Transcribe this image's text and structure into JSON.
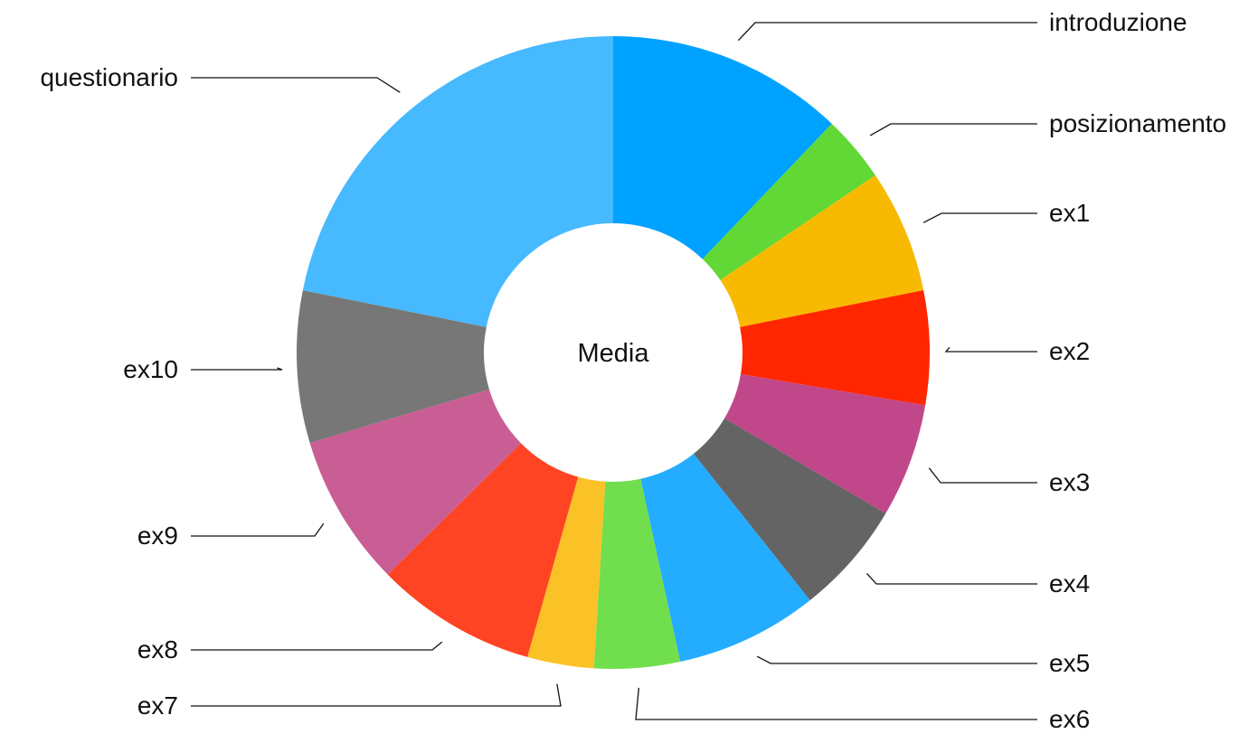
{
  "chart_data": {
    "type": "pie",
    "variant": "donut",
    "center_label": "Media",
    "legend": "none",
    "slices": [
      {
        "label": "introduzione",
        "value": 12.5,
        "color": "#00A2FF"
      },
      {
        "label": "posizionamento",
        "value": 3.5,
        "color": "#61D836"
      },
      {
        "label": "ex1",
        "value": 6.5,
        "color": "#F8BA00"
      },
      {
        "label": "ex2",
        "value": 6.0,
        "color": "#FF2600"
      },
      {
        "label": "ex3",
        "value": 6.0,
        "color": "#C0478A"
      },
      {
        "label": "ex4",
        "value": 6.0,
        "color": "#646464"
      },
      {
        "label": "ex5",
        "value": 7.5,
        "color": "#24ACFF"
      },
      {
        "label": "ex6",
        "value": 4.5,
        "color": "#71DE4E"
      },
      {
        "label": "ex7",
        "value": 3.5,
        "color": "#FAC227"
      },
      {
        "label": "ex8",
        "value": 8.5,
        "color": "#FF4423"
      },
      {
        "label": "ex9",
        "value": 8.0,
        "color": "#C95E94"
      },
      {
        "label": "ex10",
        "value": 8.0,
        "color": "#777777"
      },
      {
        "label": "questionario",
        "value": 22.5,
        "color": "#46B9FF"
      }
    ]
  }
}
